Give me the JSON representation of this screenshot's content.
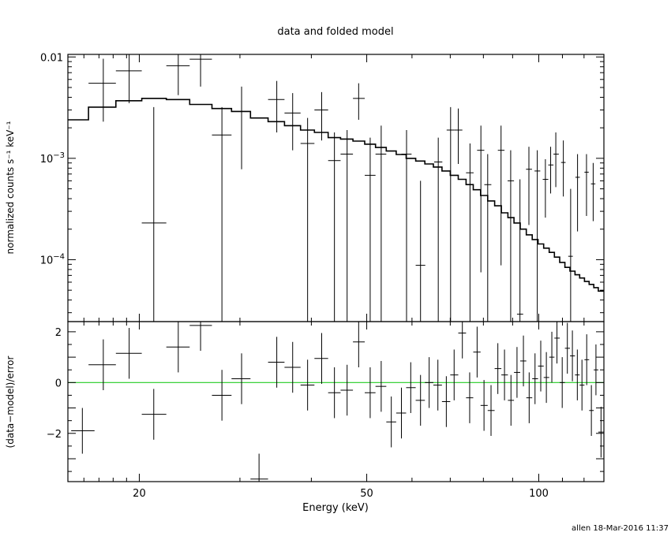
{
  "chart_data": [
    {
      "panel": "top",
      "type": "step-with-errorbars",
      "title": "data and folded model",
      "ylabel": "normalized counts s⁻¹ keV⁻¹",
      "y_scale": "log",
      "xlim": [
        15,
        130
      ],
      "ylim": [
        2.45e-05,
        0.0106
      ],
      "x_ticks": [
        {
          "value": 20,
          "label": "20"
        },
        {
          "value": 50,
          "label": "50"
        },
        {
          "value": 100,
          "label": "100"
        }
      ],
      "y_ticks": [
        {
          "value": 0.01,
          "label": "0.01"
        },
        {
          "value": 0.001,
          "label": "10",
          "sup": "−3"
        },
        {
          "value": 0.0001,
          "label": "10",
          "sup": "−4"
        }
      ],
      "data_points": [
        {
          "x": 17.3,
          "xlo": 16.3,
          "xhi": 18.2,
          "y": 0.0055,
          "ylo": 0.0023,
          "yhi": 0.0096
        },
        {
          "x": 19.2,
          "xlo": 18.2,
          "xhi": 20.2,
          "y": 0.0073,
          "ylo": 0.0035,
          "yhi": 0.0106
        },
        {
          "x": 21.2,
          "xlo": 20.2,
          "xhi": 22.3,
          "y": 0.00023,
          "ylo": 2.45e-05,
          "yhi": 0.0032
        },
        {
          "x": 23.4,
          "xlo": 22.3,
          "xhi": 24.5,
          "y": 0.0082,
          "ylo": 0.0042,
          "yhi": 0.0106
        },
        {
          "x": 25.6,
          "xlo": 24.5,
          "xhi": 26.8,
          "y": 0.0095,
          "ylo": 0.0051,
          "yhi": 0.0106
        },
        {
          "x": 27.9,
          "xlo": 26.8,
          "xhi": 29.0,
          "y": 0.0017,
          "ylo": 2.45e-05,
          "yhi": 0.0032
        },
        {
          "x": 30.2,
          "xlo": 29.0,
          "xhi": 31.3,
          "y": 0.0029,
          "ylo": 0.00078,
          "yhi": 0.0051
        },
        {
          "x": 34.8,
          "xlo": 33.6,
          "xhi": 35.9,
          "y": 0.0038,
          "ylo": 0.0018,
          "yhi": 0.0058
        },
        {
          "x": 37.1,
          "xlo": 35.9,
          "xhi": 38.3,
          "y": 0.0028,
          "ylo": 0.0012,
          "yhi": 0.0044
        },
        {
          "x": 39.4,
          "xlo": 38.3,
          "xhi": 40.5,
          "y": 0.0014,
          "ylo": 2.45e-05,
          "yhi": 0.0025
        },
        {
          "x": 41.7,
          "xlo": 40.5,
          "xhi": 42.8,
          "y": 0.003,
          "ylo": 0.0015,
          "yhi": 0.0045
        },
        {
          "x": 43.9,
          "xlo": 42.8,
          "xhi": 45.0,
          "y": 0.00095,
          "ylo": 2.45e-05,
          "yhi": 0.0018
        },
        {
          "x": 46.2,
          "xlo": 45.0,
          "xhi": 47.3,
          "y": 0.0011,
          "ylo": 2.45e-05,
          "yhi": 0.0019
        },
        {
          "x": 48.4,
          "xlo": 47.3,
          "xhi": 49.6,
          "y": 0.0039,
          "ylo": 0.0024,
          "yhi": 0.0055
        },
        {
          "x": 50.7,
          "xlo": 49.6,
          "xhi": 51.8,
          "y": 0.00068,
          "ylo": 2.45e-05,
          "yhi": 0.0016
        },
        {
          "x": 53.0,
          "xlo": 51.8,
          "xhi": 54.1,
          "y": 0.0011,
          "ylo": 2.45e-05,
          "yhi": 0.0021
        },
        {
          "x": 58.7,
          "xlo": 57.5,
          "xhi": 59.9,
          "y": 0.0011,
          "ylo": 2.45e-05,
          "yhi": 0.0019
        },
        {
          "x": 62.1,
          "xlo": 60.9,
          "xhi": 63.3,
          "y": 8.8e-05,
          "ylo": 2.45e-05,
          "yhi": 0.0006
        },
        {
          "x": 66.7,
          "xlo": 65.6,
          "xhi": 67.8,
          "y": 0.00092,
          "ylo": 2.45e-05,
          "yhi": 0.0016
        },
        {
          "x": 70.1,
          "xlo": 69.0,
          "xhi": 71.2,
          "y": 0.0019,
          "ylo": 2.45e-05,
          "yhi": 0.0032
        },
        {
          "x": 72.3,
          "xlo": 71.2,
          "xhi": 73.5,
          "y": 0.0019,
          "ylo": 0.00088,
          "yhi": 0.0031
        },
        {
          "x": 75.8,
          "xlo": 74.6,
          "xhi": 76.9,
          "y": 0.00072,
          "ylo": 2.45e-05,
          "yhi": 0.0014
        },
        {
          "x": 79.2,
          "xlo": 78.0,
          "xhi": 80.3,
          "y": 0.0012,
          "ylo": 7.5e-05,
          "yhi": 0.0021
        },
        {
          "x": 81.4,
          "xlo": 80.3,
          "xhi": 82.6,
          "y": 0.00055,
          "ylo": 2.45e-05,
          "yhi": 0.0011
        },
        {
          "x": 85.9,
          "xlo": 84.8,
          "xhi": 87.1,
          "y": 0.0012,
          "ylo": 8.8e-05,
          "yhi": 0.0021
        },
        {
          "x": 89.3,
          "xlo": 88.2,
          "xhi": 90.5,
          "y": 0.0006,
          "ylo": 2.45e-05,
          "yhi": 0.0012
        },
        {
          "x": 92.7,
          "xlo": 91.6,
          "xhi": 93.9,
          "y": 2.9e-05,
          "ylo": 2.45e-05,
          "yhi": 0.00062
        },
        {
          "x": 96.1,
          "xlo": 95.0,
          "xhi": 97.3,
          "y": 0.00078,
          "ylo": 0.00022,
          "yhi": 0.0013
        },
        {
          "x": 99.4,
          "xlo": 98.3,
          "xhi": 100.6,
          "y": 0.00075,
          "ylo": 2.45e-05,
          "yhi": 0.0012
        },
        {
          "x": 102.7,
          "xlo": 101.6,
          "xhi": 103.9,
          "y": 0.00062,
          "ylo": 0.00026,
          "yhi": 0.00098
        },
        {
          "x": 104.9,
          "xlo": 103.9,
          "xhi": 106.1,
          "y": 0.00086,
          "ylo": 0.00045,
          "yhi": 0.0013
        },
        {
          "x": 107.1,
          "xlo": 106.1,
          "xhi": 108.4,
          "y": 0.0011,
          "ylo": 0.00052,
          "yhi": 0.0018
        },
        {
          "x": 110.4,
          "xlo": 109.4,
          "xhi": 111.4,
          "y": 0.00091,
          "ylo": 0.00042,
          "yhi": 0.0015
        },
        {
          "x": 113.7,
          "xlo": 112.6,
          "xhi": 114.7,
          "y": 0.000108,
          "ylo": 2.45e-05,
          "yhi": 0.0005
        },
        {
          "x": 116.9,
          "xlo": 115.9,
          "xhi": 118.0,
          "y": 0.00065,
          "ylo": 0.00019,
          "yhi": 0.0011
        },
        {
          "x": 121.2,
          "xlo": 120.2,
          "xhi": 122.3,
          "y": 0.00073,
          "ylo": 0.00027,
          "yhi": 0.0011
        },
        {
          "x": 124.5,
          "xlo": 123.4,
          "xhi": 125.6,
          "y": 0.00056,
          "ylo": 0.00024,
          "yhi": 0.0009
        }
      ],
      "model_edges": [
        15,
        16.3,
        18.2,
        20.2,
        22.3,
        24.5,
        26.8,
        29.0,
        31.3,
        33.6,
        35.9,
        38.3,
        40.5,
        42.8,
        45.0,
        47.3,
        49.6,
        51.8,
        54.1,
        56.3,
        58.6,
        60.9,
        63.2,
        65.4,
        67.7,
        70.0,
        72.3,
        74.6,
        76.8,
        79.1,
        81.4,
        83.7,
        86.0,
        88.3,
        90.5,
        92.8,
        95.1,
        97.4,
        99.7,
        102.0,
        104.3,
        106.5,
        108.8,
        111.1,
        113.4,
        115.7,
        117.9,
        120.2,
        122.5,
        124.8,
        127.1,
        130
      ],
      "model_values": [
        0.0024,
        0.0032,
        0.0037,
        0.0039,
        0.0038,
        0.0034,
        0.0031,
        0.0029,
        0.0025,
        0.0023,
        0.0021,
        0.0019,
        0.0018,
        0.0016,
        0.00155,
        0.00148,
        0.00138,
        0.00128,
        0.00118,
        0.00109,
        0.001,
        0.00094,
        0.00088,
        0.00082,
        0.00075,
        0.00068,
        0.00062,
        0.00055,
        0.00049,
        0.00043,
        0.00038,
        0.00034,
        0.00029,
        0.00026,
        0.00023,
        0.0002,
        0.000176,
        0.000158,
        0.000143,
        0.00013,
        0.000118,
        0.000106,
        9.4e-05,
        8.4e-05,
        7.7e-05,
        7.1e-05,
        6.6e-05,
        6.1e-05,
        5.7e-05,
        5.3e-05,
        4.9e-05
      ]
    },
    {
      "panel": "bottom",
      "type": "errorbars",
      "xlabel": "Energy (keV)",
      "ylabel": "(data−model)/error",
      "ylim": [
        -3.9,
        2.4
      ],
      "y_ticks": [
        {
          "value": 2,
          "label": "2"
        },
        {
          "value": 0,
          "label": "0"
        },
        {
          "value": -2,
          "label": "−2"
        }
      ],
      "zero_line_color": "#22cc22",
      "residuals": [
        {
          "x": 15.9,
          "xlo": 15.2,
          "xhi": 16.7,
          "y": -1.9,
          "err": 0.9
        },
        {
          "x": 17.3,
          "xlo": 16.3,
          "xhi": 18.2,
          "y": 0.7,
          "err": 1.0
        },
        {
          "x": 19.2,
          "xlo": 18.2,
          "xhi": 20.2,
          "y": 1.15,
          "err": 1.0
        },
        {
          "x": 21.2,
          "xlo": 20.2,
          "xhi": 22.3,
          "y": -1.25,
          "err": 1.0
        },
        {
          "x": 23.4,
          "xlo": 22.3,
          "xhi": 24.5,
          "y": 1.4,
          "err": 1.0
        },
        {
          "x": 25.6,
          "xlo": 24.5,
          "xhi": 26.8,
          "y": 2.25,
          "err": 1.0
        },
        {
          "x": 27.9,
          "xlo": 26.8,
          "xhi": 29.0,
          "y": -0.5,
          "err": 1.0
        },
        {
          "x": 30.2,
          "xlo": 29.0,
          "xhi": 31.3,
          "y": 0.15,
          "err": 1.0
        },
        {
          "x": 32.4,
          "xlo": 31.3,
          "xhi": 33.6,
          "y": -3.8,
          "err": 1.0
        },
        {
          "x": 34.8,
          "xlo": 33.6,
          "xhi": 35.9,
          "y": 0.8,
          "err": 1.0
        },
        {
          "x": 37.1,
          "xlo": 35.9,
          "xhi": 38.3,
          "y": 0.6,
          "err": 1.0
        },
        {
          "x": 39.4,
          "xlo": 38.3,
          "xhi": 40.5,
          "y": -0.1,
          "err": 1.0
        },
        {
          "x": 41.7,
          "xlo": 40.5,
          "xhi": 42.8,
          "y": 0.95,
          "err": 1.0
        },
        {
          "x": 43.9,
          "xlo": 42.8,
          "xhi": 45.0,
          "y": -0.4,
          "err": 1.0
        },
        {
          "x": 46.2,
          "xlo": 45.0,
          "xhi": 47.3,
          "y": -0.3,
          "err": 1.0
        },
        {
          "x": 48.4,
          "xlo": 47.3,
          "xhi": 49.6,
          "y": 1.6,
          "err": 1.0
        },
        {
          "x": 50.7,
          "xlo": 49.6,
          "xhi": 51.8,
          "y": -0.4,
          "err": 1.0
        },
        {
          "x": 53.0,
          "xlo": 51.8,
          "xhi": 54.1,
          "y": -0.15,
          "err": 1.0
        },
        {
          "x": 55.2,
          "xlo": 54.1,
          "xhi": 56.3,
          "y": -1.55,
          "err": 1.0
        },
        {
          "x": 57.5,
          "xlo": 56.3,
          "xhi": 58.6,
          "y": -1.2,
          "err": 1.0
        },
        {
          "x": 59.7,
          "xlo": 58.6,
          "xhi": 60.9,
          "y": -0.2,
          "err": 1.0
        },
        {
          "x": 62.1,
          "xlo": 60.9,
          "xhi": 63.2,
          "y": -0.7,
          "err": 1.0
        },
        {
          "x": 64.3,
          "xlo": 63.2,
          "xhi": 65.4,
          "y": 0.0,
          "err": 1.0
        },
        {
          "x": 66.6,
          "xlo": 65.4,
          "xhi": 67.7,
          "y": -0.1,
          "err": 1.0
        },
        {
          "x": 68.9,
          "xlo": 67.7,
          "xhi": 70.0,
          "y": -0.75,
          "err": 1.0
        },
        {
          "x": 71.1,
          "xlo": 70.0,
          "xhi": 72.3,
          "y": 0.3,
          "err": 1.0
        },
        {
          "x": 73.5,
          "xlo": 72.3,
          "xhi": 74.6,
          "y": 1.95,
          "err": 1.0
        },
        {
          "x": 75.7,
          "xlo": 74.6,
          "xhi": 76.8,
          "y": -0.6,
          "err": 1.0
        },
        {
          "x": 78.0,
          "xlo": 76.8,
          "xhi": 79.1,
          "y": 1.2,
          "err": 1.0
        },
        {
          "x": 80.2,
          "xlo": 79.1,
          "xhi": 81.4,
          "y": -0.9,
          "err": 1.0
        },
        {
          "x": 82.5,
          "xlo": 81.4,
          "xhi": 83.7,
          "y": -1.1,
          "err": 1.0
        },
        {
          "x": 84.8,
          "xlo": 83.7,
          "xhi": 86.0,
          "y": 0.55,
          "err": 1.0
        },
        {
          "x": 87.1,
          "xlo": 86.0,
          "xhi": 88.3,
          "y": 0.3,
          "err": 1.0
        },
        {
          "x": 89.4,
          "xlo": 88.3,
          "xhi": 90.5,
          "y": -0.7,
          "err": 1.0
        },
        {
          "x": 91.6,
          "xlo": 90.5,
          "xhi": 92.8,
          "y": 0.4,
          "err": 1.0
        },
        {
          "x": 94.0,
          "xlo": 92.8,
          "xhi": 95.1,
          "y": 0.85,
          "err": 1.0
        },
        {
          "x": 96.2,
          "xlo": 95.1,
          "xhi": 97.4,
          "y": -0.6,
          "err": 1.0
        },
        {
          "x": 98.5,
          "xlo": 97.4,
          "xhi": 99.7,
          "y": 0.15,
          "err": 1.0
        },
        {
          "x": 100.8,
          "xlo": 99.7,
          "xhi": 102.0,
          "y": 0.65,
          "err": 1.0
        },
        {
          "x": 103.1,
          "xlo": 102.0,
          "xhi": 104.3,
          "y": 0.2,
          "err": 1.0
        },
        {
          "x": 105.4,
          "xlo": 104.3,
          "xhi": 106.5,
          "y": 1.0,
          "err": 1.0
        },
        {
          "x": 107.6,
          "xlo": 106.5,
          "xhi": 108.8,
          "y": 1.75,
          "err": 1.0
        },
        {
          "x": 109.9,
          "xlo": 108.8,
          "xhi": 111.1,
          "y": 0.0,
          "err": 1.0
        },
        {
          "x": 112.2,
          "xlo": 111.1,
          "xhi": 113.4,
          "y": 1.35,
          "err": 1.0
        },
        {
          "x": 114.5,
          "xlo": 113.4,
          "xhi": 115.7,
          "y": 1.05,
          "err": 1.0
        },
        {
          "x": 116.8,
          "xlo": 115.7,
          "xhi": 117.9,
          "y": 0.3,
          "err": 1.0
        },
        {
          "x": 119.0,
          "xlo": 117.9,
          "xhi": 120.2,
          "y": -0.1,
          "err": 1.0
        },
        {
          "x": 121.3,
          "xlo": 120.2,
          "xhi": 122.5,
          "y": 0.9,
          "err": 1.0
        },
        {
          "x": 123.6,
          "xlo": 122.5,
          "xhi": 124.8,
          "y": -1.1,
          "err": 1.0
        },
        {
          "x": 125.9,
          "xlo": 124.8,
          "xhi": 127.1,
          "y": 0.5,
          "err": 1.0
        },
        {
          "x": 128.5,
          "xlo": 127.1,
          "xhi": 130.0,
          "y": -1.95,
          "err": 1.0
        }
      ]
    }
  ],
  "footer": {
    "stamp": "allen 18-Mar-2016 11:37"
  }
}
